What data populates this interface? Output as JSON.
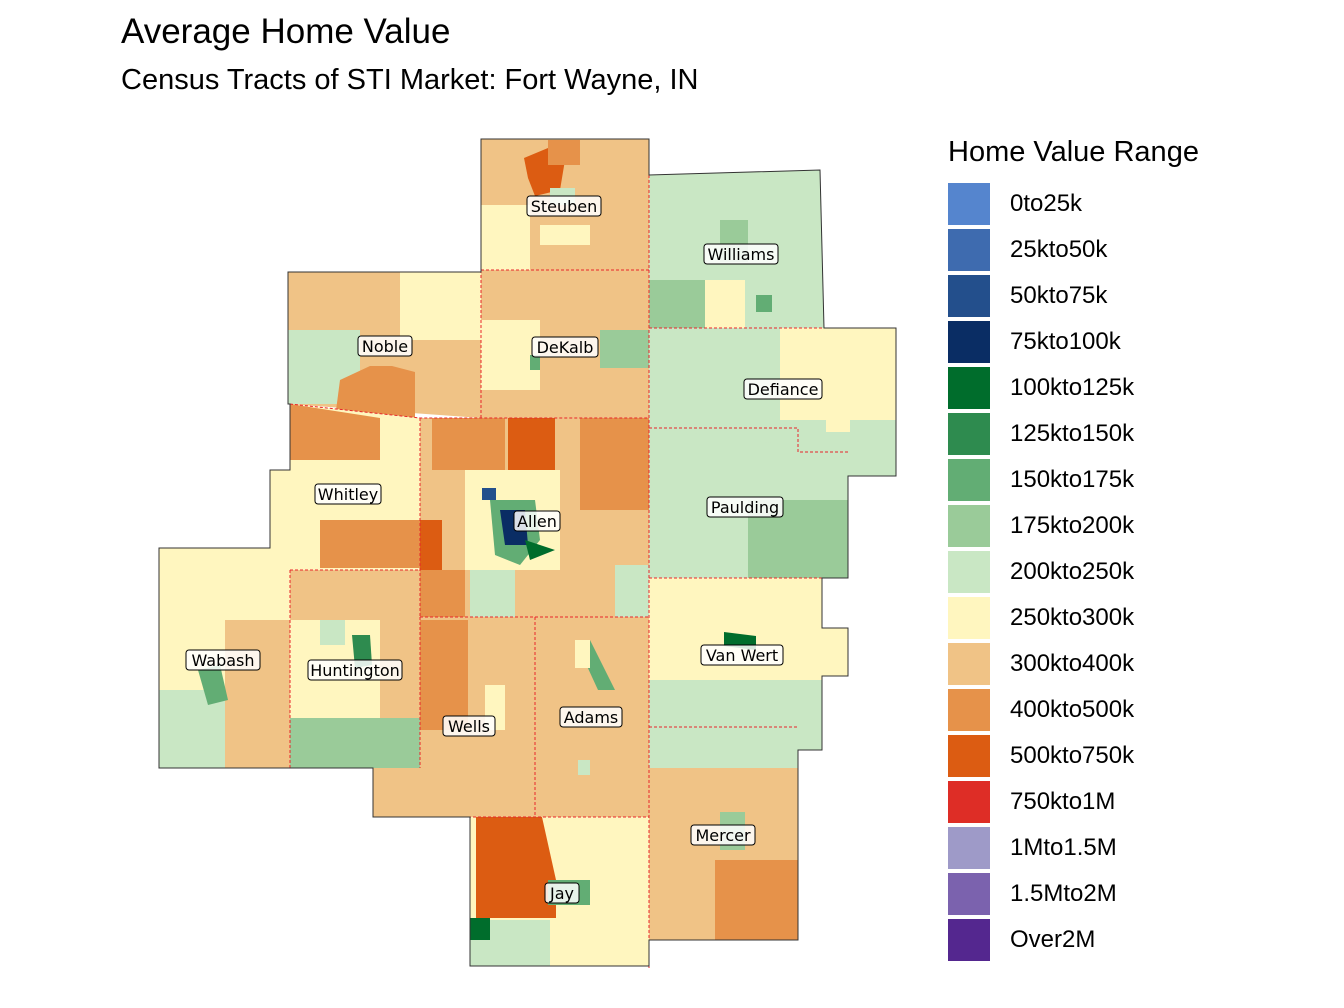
{
  "title": "Average Home Value",
  "subtitle": "Census Tracts of STI Market: Fort Wayne, IN",
  "legend": {
    "title": "Home Value Range",
    "items": [
      {
        "label": "0to25k",
        "color": "#5585CE"
      },
      {
        "label": "25kto50k",
        "color": "#3E6BAF"
      },
      {
        "label": "50kto75k",
        "color": "#234F8C"
      },
      {
        "label": "75kto100k",
        "color": "#0A2D64"
      },
      {
        "label": "100kto125k",
        "color": "#006D2C"
      },
      {
        "label": "125kto150k",
        "color": "#2E8B4F"
      },
      {
        "label": "150kto175k",
        "color": "#62AD74"
      },
      {
        "label": "175kto200k",
        "color": "#9ACB99"
      },
      {
        "label": "200kto250k",
        "color": "#C9E7C4"
      },
      {
        "label": "250kto300k",
        "color": "#FFF6BF"
      },
      {
        "label": "300kto400k",
        "color": "#F0C386"
      },
      {
        "label": "400kto500k",
        "color": "#E6924A"
      },
      {
        "label": "500kto750k",
        "color": "#DC5C12"
      },
      {
        "label": "750kto1M",
        "color": "#DE2D26"
      },
      {
        "label": "1Mto1.5M",
        "color": "#9E9AC8"
      },
      {
        "label": "1.5Mto2M",
        "color": "#7B62AE"
      },
      {
        "label": "Over2M",
        "color": "#54278F"
      }
    ]
  },
  "counties": [
    {
      "name": "Steuben"
    },
    {
      "name": "Williams"
    },
    {
      "name": "Noble"
    },
    {
      "name": "DeKalb"
    },
    {
      "name": "Defiance"
    },
    {
      "name": "Whitley"
    },
    {
      "name": "Allen"
    },
    {
      "name": "Paulding"
    },
    {
      "name": "Wabash"
    },
    {
      "name": "Huntington"
    },
    {
      "name": "Van Wert"
    },
    {
      "name": "Wells"
    },
    {
      "name": "Adams"
    },
    {
      "name": "Mercer"
    },
    {
      "name": "Jay"
    }
  ]
}
